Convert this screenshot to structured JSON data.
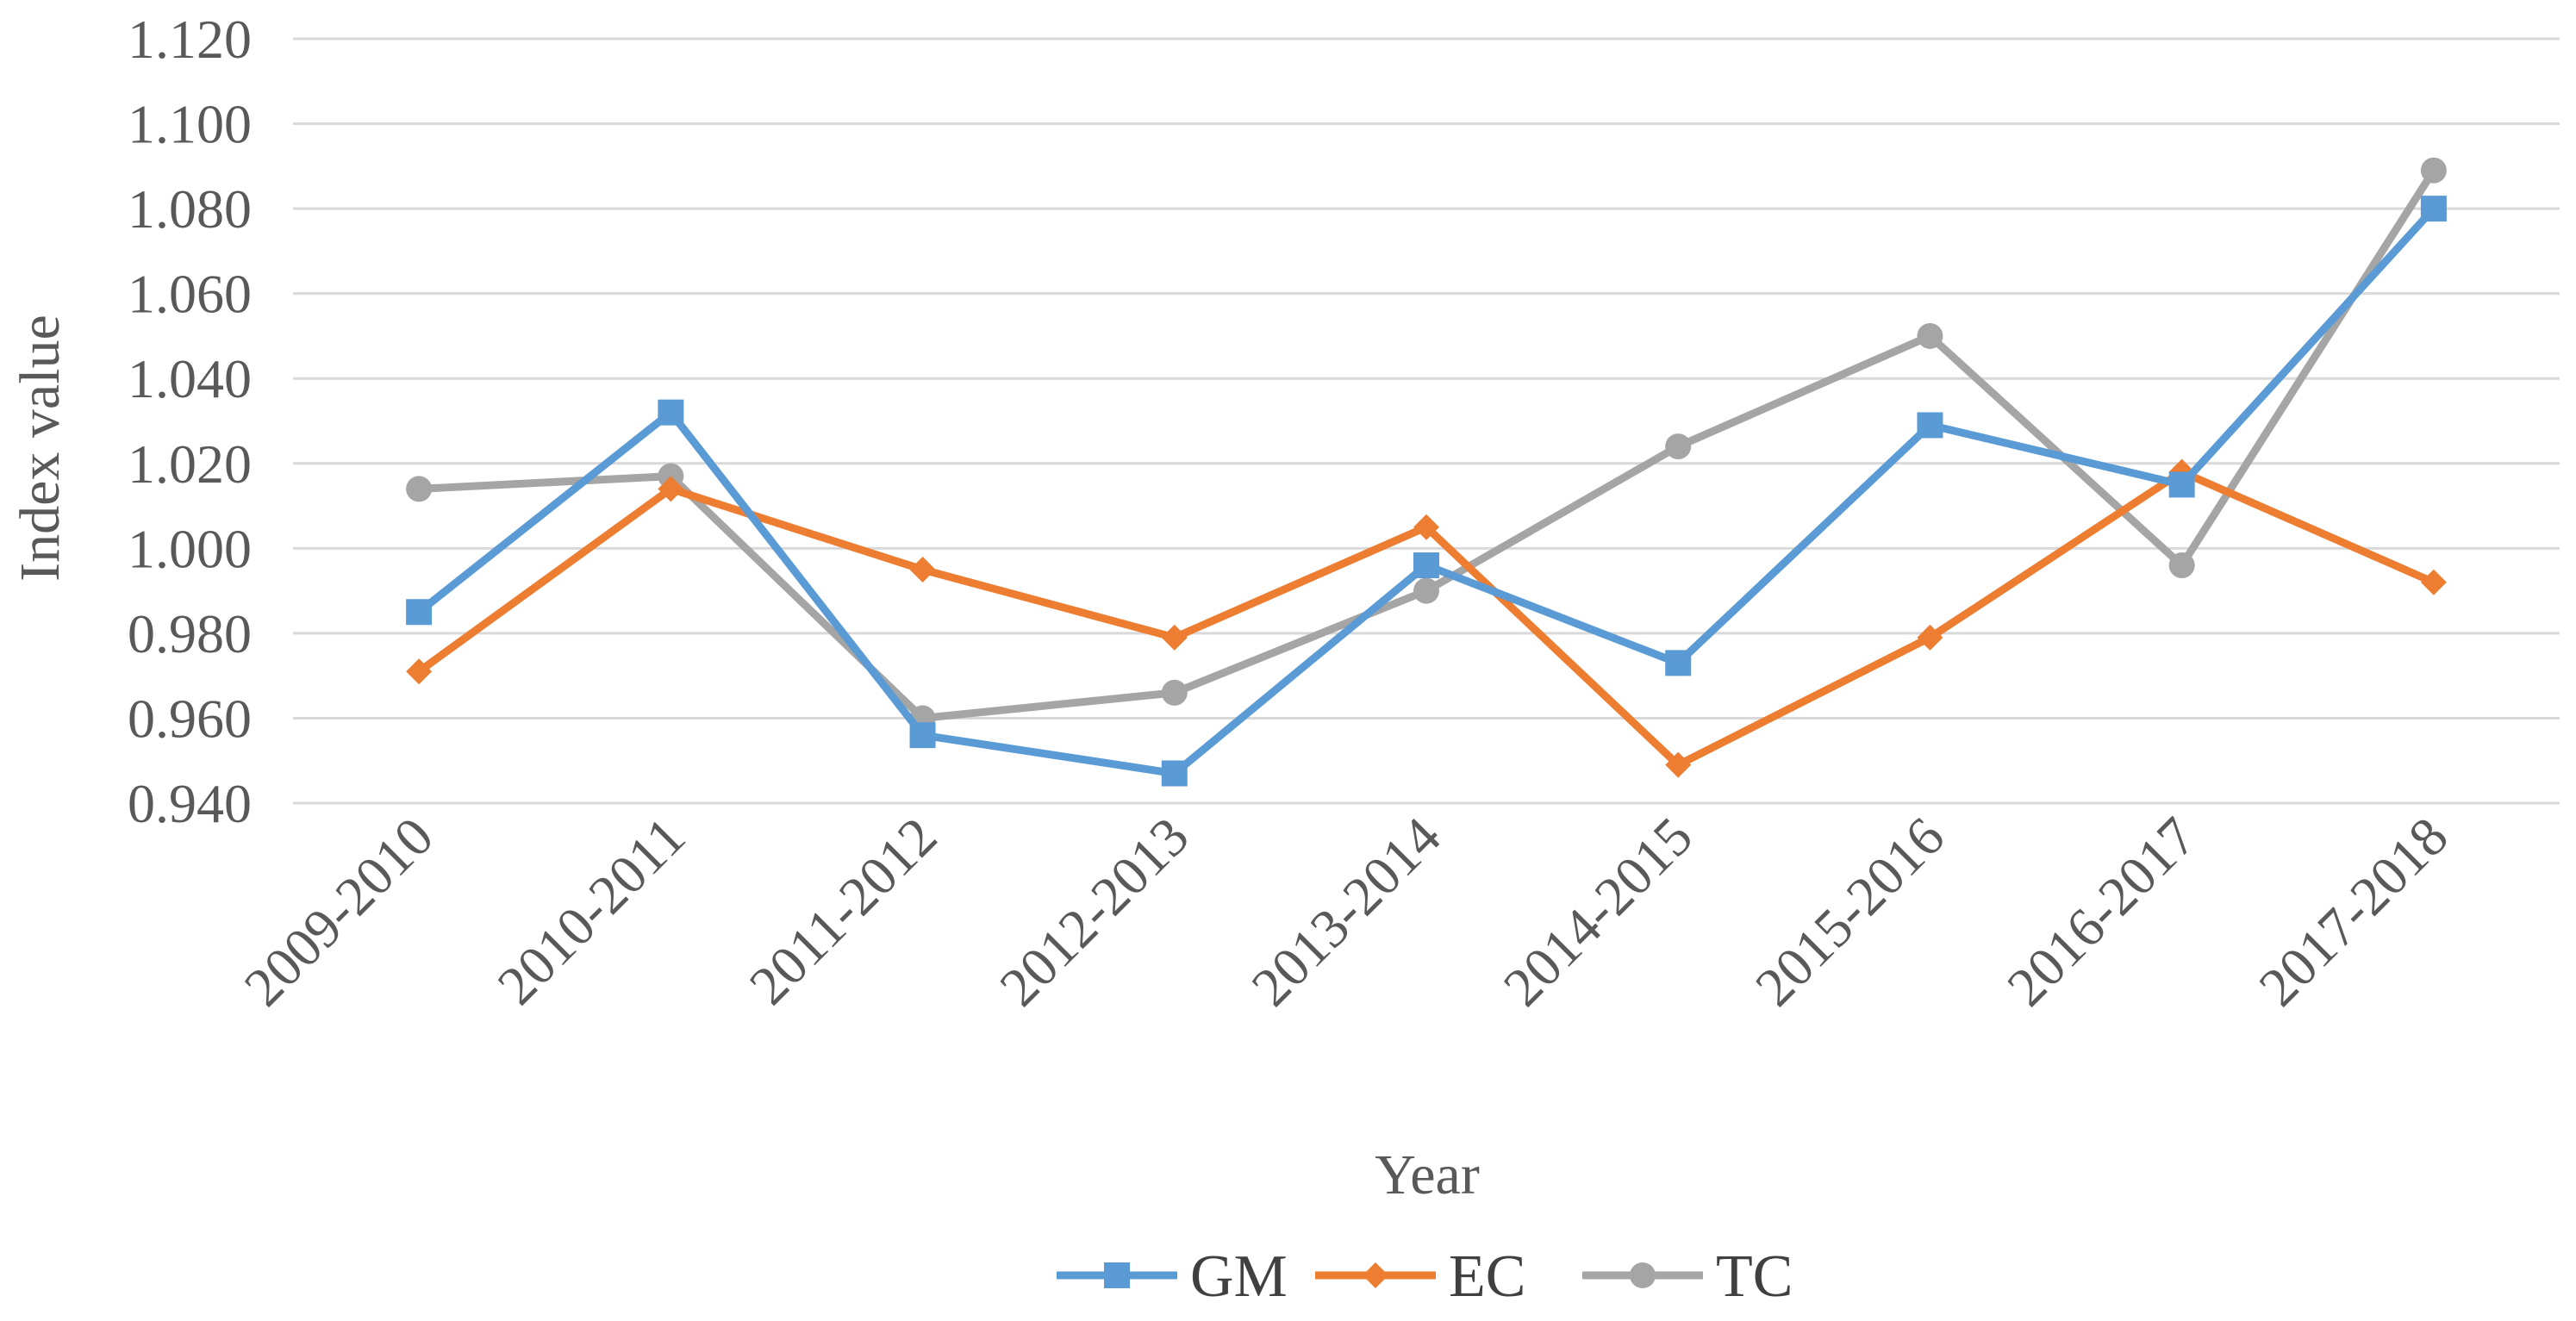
{
  "chart_data": {
    "type": "line",
    "title": "",
    "xlabel": "Year",
    "ylabel": "Index value",
    "ylim": [
      0.94,
      1.12
    ],
    "ytick_step": 0.02,
    "ytick_labels": [
      "0.940",
      "0.960",
      "0.980",
      "1.000",
      "1.020",
      "1.040",
      "1.060",
      "1.080",
      "1.100",
      "1.120"
    ],
    "grid": true,
    "legend_position": "bottom",
    "categories": [
      "2009-2010",
      "2010-2011",
      "2011-2012",
      "2012-2013",
      "2013-2014",
      "2014-2015",
      "2015-2016",
      "2016-2017",
      "2017-2018"
    ],
    "series": [
      {
        "name": "GM",
        "color": "#5B9BD5",
        "marker": "square",
        "values": [
          0.985,
          1.032,
          0.956,
          0.947,
          0.996,
          0.973,
          1.029,
          1.015,
          1.08
        ]
      },
      {
        "name": "EC",
        "color": "#ED7D31",
        "marker": "diamond",
        "values": [
          0.971,
          1.014,
          0.995,
          0.979,
          1.005,
          0.949,
          0.979,
          1.018,
          0.992
        ]
      },
      {
        "name": "TC",
        "color": "#A5A5A5",
        "marker": "circle",
        "values": [
          1.014,
          1.017,
          0.96,
          0.966,
          0.99,
          1.024,
          1.05,
          0.996,
          1.089
        ]
      }
    ]
  }
}
